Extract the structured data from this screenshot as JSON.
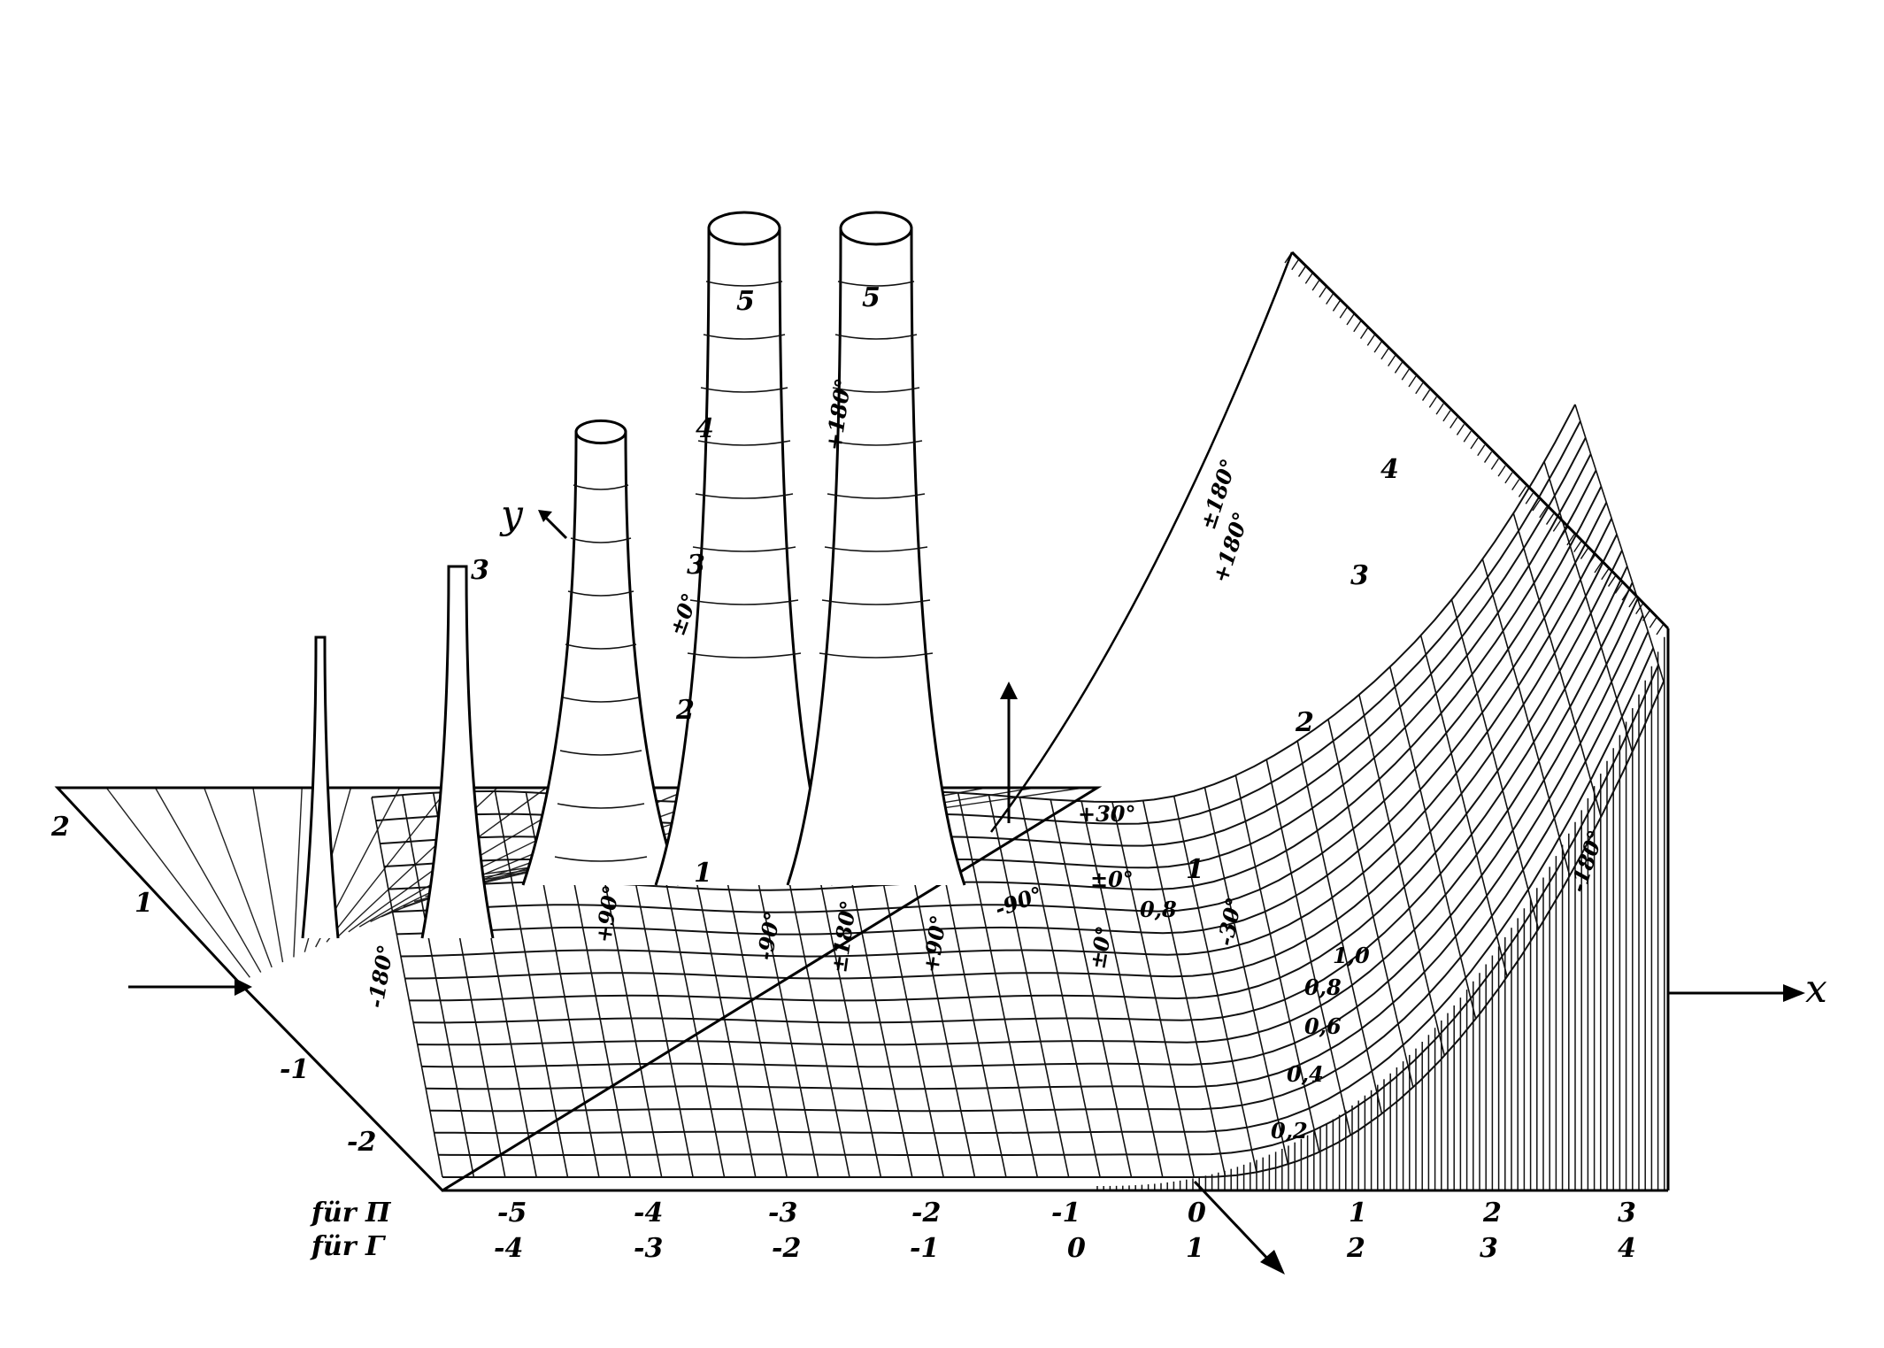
{
  "figure": {
    "axis_labels": {
      "x": "x",
      "y": "y"
    },
    "row_labels": [
      "für Π",
      "für Γ"
    ],
    "x_ticks_pi": [
      "-5",
      "-4",
      "-3",
      "-2",
      "-1",
      "0",
      "1",
      "2",
      "3"
    ],
    "x_ticks_gamma": [
      "-4",
      "-3",
      "-2",
      "-1",
      "0",
      "1",
      "2",
      "3",
      "4"
    ],
    "y_ticks": [
      "2",
      "1",
      "-1",
      "-2"
    ],
    "height_labels": [
      "1",
      "2",
      "3",
      "4",
      "5",
      "5",
      "3",
      "1",
      "2",
      "3",
      "4"
    ],
    "contour_labels": [
      "0,2",
      "0,4",
      "0,6",
      "0,8",
      "1,0",
      "0,8"
    ],
    "phase_labels": [
      "±180°",
      "+180°",
      "-180°",
      "±0°",
      "+30°",
      "±0°",
      "-90°",
      "+90°",
      "±180°",
      "+90°",
      "-90°",
      "±0°",
      "-30°",
      "+180°",
      "-180°"
    ]
  }
}
